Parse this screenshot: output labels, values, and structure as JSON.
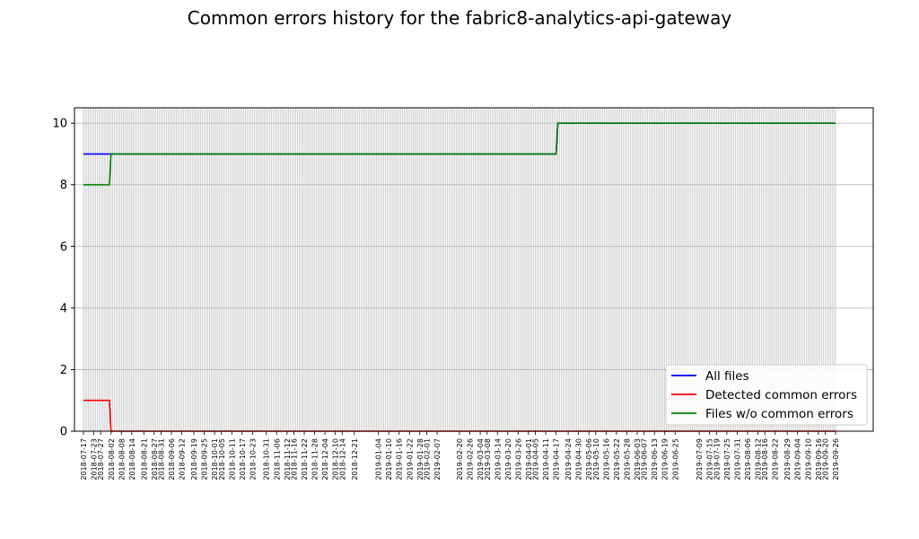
{
  "chart_data": {
    "type": "line",
    "title": "Common errors history for the fabric8-analytics-api-gateway",
    "xlabel": "",
    "ylabel": "",
    "ylim": [
      0,
      10.5
    ],
    "yticks": [
      0,
      2,
      4,
      6,
      8,
      10
    ],
    "grid": true,
    "legend_position": "bottom-right",
    "x_ticks": [
      "2018-07-17",
      "2018-07-23",
      "2018-07-27",
      "2018-08-02",
      "2018-08-08",
      "2018-08-14",
      "2018-08-21",
      "2018-08-27",
      "2018-08-31",
      "2018-09-06",
      "2018-09-12",
      "2018-09-19",
      "2018-09-25",
      "2018-10-01",
      "2018-10-05",
      "2018-10-11",
      "2018-10-17",
      "2018-10-23",
      "2018-10-31",
      "2018-11-06",
      "2018-11-12",
      "2018-11-16",
      "2018-11-22",
      "2018-11-28",
      "2018-12-04",
      "2018-12-10",
      "2018-12-14",
      "2018-12-21",
      "2019-01-04",
      "2019-01-10",
      "2019-01-16",
      "2019-01-22",
      "2019-01-28",
      "2019-02-01",
      "2019-02-07",
      "2019-02-20",
      "2019-02-26",
      "2019-03-04",
      "2019-03-08",
      "2019-03-14",
      "2019-03-20",
      "2019-03-26",
      "2019-04-01",
      "2019-04-05",
      "2019-04-11",
      "2019-04-17",
      "2019-04-24",
      "2019-04-30",
      "2019-05-06",
      "2019-05-10",
      "2019-05-16",
      "2019-05-22",
      "2019-05-28",
      "2019-06-03",
      "2019-06-07",
      "2019-06-13",
      "2019-06-19",
      "2019-06-25",
      "2019-07-09",
      "2019-07-15",
      "2019-07-19",
      "2019-07-25",
      "2019-07-31",
      "2019-08-06",
      "2019-08-12",
      "2019-08-16",
      "2019-08-22",
      "2019-08-29",
      "2019-09-04",
      "2019-09-10",
      "2019-09-16",
      "2019-09-20",
      "2019-09-26"
    ],
    "series": [
      {
        "name": "All files",
        "color": "#0000ff",
        "points": [
          {
            "x": "2018-07-17",
            "y": 9
          },
          {
            "x": "2018-08-02",
            "y": 9
          },
          {
            "x": "2019-04-17",
            "y": 9
          },
          {
            "x": "2019-04-18",
            "y": 10
          },
          {
            "x": "2019-09-26",
            "y": 10
          }
        ]
      },
      {
        "name": "Detected common errors",
        "color": "#ff0000",
        "points": [
          {
            "x": "2018-07-17",
            "y": 1
          },
          {
            "x": "2018-08-01",
            "y": 1
          },
          {
            "x": "2018-08-02",
            "y": 0
          },
          {
            "x": "2019-09-26",
            "y": 0
          }
        ]
      },
      {
        "name": "Files w/o common errors",
        "color": "#008000",
        "points": [
          {
            "x": "2018-07-17",
            "y": 8
          },
          {
            "x": "2018-08-01",
            "y": 8
          },
          {
            "x": "2018-08-02",
            "y": 9
          },
          {
            "x": "2019-04-17",
            "y": 9
          },
          {
            "x": "2019-04-18",
            "y": 10
          },
          {
            "x": "2019-09-26",
            "y": 10
          }
        ]
      }
    ]
  }
}
